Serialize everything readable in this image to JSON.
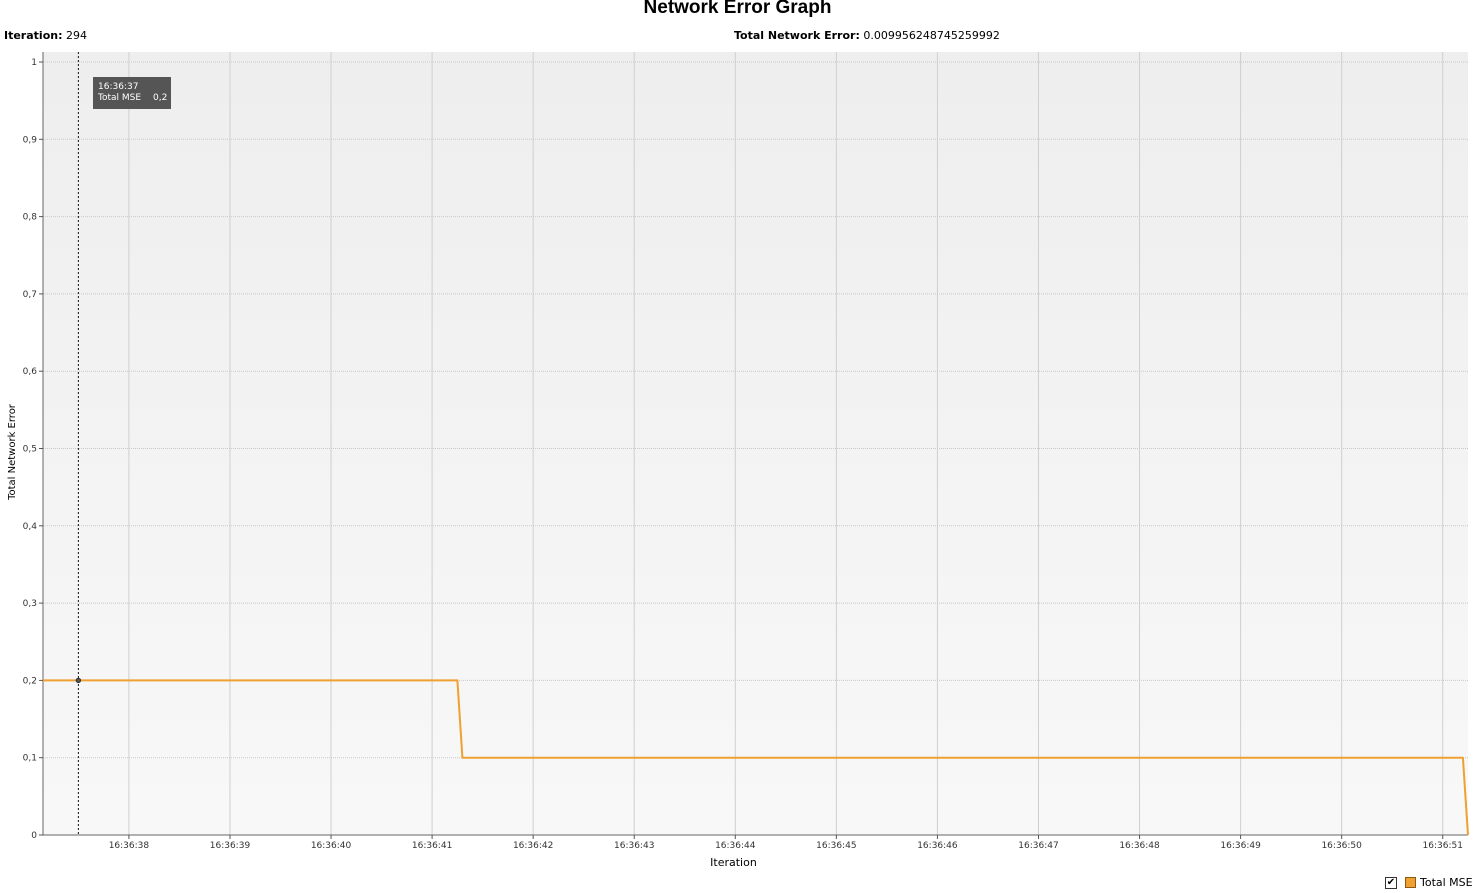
{
  "title": "Network Error Graph",
  "stats": {
    "iteration_label": "Iteration:",
    "iteration_value": "294",
    "error_label": "Total Network Error:",
    "error_value": "0.009956248745259992"
  },
  "tooltip": {
    "time": "16:36:37",
    "series_label": "Total MSE",
    "value": "0,2"
  },
  "legend": {
    "checked": true,
    "check_glyph": "✔",
    "label": "Total MSE"
  },
  "colors": {
    "series": "#f0a030",
    "plot_bg": "#f4f4f4",
    "grid": "#c8c8c8"
  },
  "chart_data": {
    "type": "line",
    "title": "Network Error Graph",
    "xlabel": "Iteration",
    "ylabel": "Total Network Error",
    "x_unit": "time (HH:MM:SS)",
    "xlim": [
      "16:36:37.15",
      "16:36:51.25"
    ],
    "ylim": [
      0,
      1
    ],
    "yticks": [
      0,
      0.1,
      0.2,
      0.3,
      0.4,
      0.5,
      0.6,
      0.7,
      0.8,
      0.9,
      1
    ],
    "ytick_labels": [
      "0",
      "0,1",
      "0,2",
      "0,3",
      "0,4",
      "0,5",
      "0,6",
      "0,7",
      "0,8",
      "0,9",
      "1"
    ],
    "xticks": [
      "16:36:38",
      "16:36:39",
      "16:36:40",
      "16:36:41",
      "16:36:42",
      "16:36:43",
      "16:36:44",
      "16:36:45",
      "16:36:46",
      "16:36:47",
      "16:36:48",
      "16:36:49",
      "16:36:50",
      "16:36:51"
    ],
    "grid": true,
    "legend": "bottom-right",
    "crosshair_x": "16:36:37.5",
    "series": [
      {
        "name": "Total MSE",
        "color": "#f0a030",
        "points": [
          {
            "x": "16:36:37.15",
            "y": 0.2
          },
          {
            "x": "16:36:37.5",
            "y": 0.2
          },
          {
            "x": "16:36:41.25",
            "y": 0.2
          },
          {
            "x": "16:36:41.3",
            "y": 0.1
          },
          {
            "x": "16:36:51.2",
            "y": 0.1
          },
          {
            "x": "16:36:51.25",
            "y": 0.0
          }
        ]
      }
    ]
  }
}
